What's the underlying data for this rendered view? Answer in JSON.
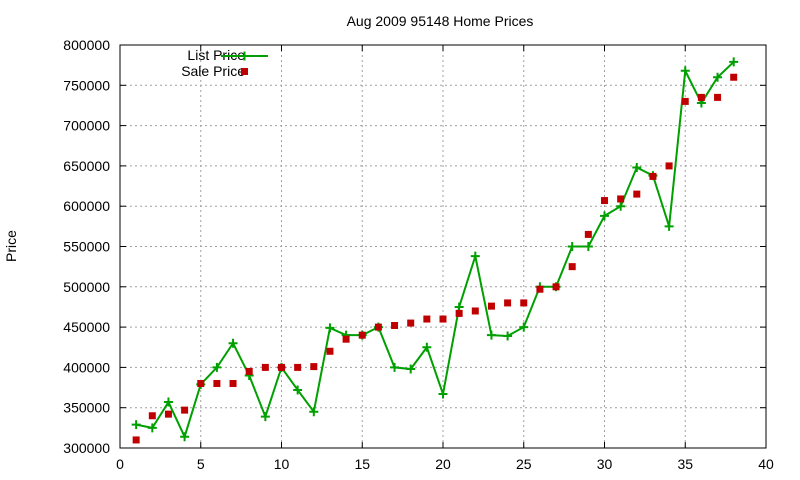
{
  "chart_data": {
    "type": "line",
    "title": "Aug 2009 95148 Home Prices",
    "xlabel": "",
    "ylabel": "Price",
    "xlim": [
      0,
      40
    ],
    "ylim": [
      300000,
      800000
    ],
    "x_ticks": [
      "0",
      "5",
      "10",
      "15",
      "20",
      "25",
      "30",
      "35",
      "40"
    ],
    "y_ticks": [
      "300000",
      "350000",
      "400000",
      "450000",
      "500000",
      "550000",
      "600000",
      "650000",
      "700000",
      "750000",
      "800000"
    ],
    "grid": true,
    "legend_position": "top-left",
    "series": [
      {
        "name": "List Price",
        "style": "lines+plus-points",
        "color": "#00a000",
        "x": [
          1,
          2,
          3,
          4,
          5,
          6,
          7,
          8,
          9,
          10,
          11,
          12,
          13,
          14,
          15,
          16,
          17,
          18,
          19,
          20,
          21,
          22,
          23,
          24,
          25,
          26,
          27,
          28,
          29,
          30,
          31,
          32,
          33,
          34,
          35,
          36,
          37,
          38
        ],
        "y": [
          329000,
          325000,
          357000,
          314000,
          379000,
          400000,
          430000,
          390000,
          339000,
          400000,
          372000,
          345000,
          449000,
          440000,
          440000,
          450000,
          400000,
          398000,
          425000,
          367000,
          475000,
          538000,
          440000,
          439000,
          450000,
          500000,
          500000,
          550000,
          550000,
          588000,
          600000,
          648000,
          638000,
          575000,
          768000,
          728000,
          760000,
          779000
        ]
      },
      {
        "name": "Sale Price",
        "style": "square-points",
        "color": "#c00000",
        "x": [
          1,
          2,
          3,
          4,
          5,
          6,
          7,
          8,
          9,
          10,
          11,
          12,
          13,
          14,
          15,
          16,
          17,
          18,
          19,
          20,
          21,
          22,
          23,
          24,
          25,
          26,
          27,
          28,
          29,
          30,
          31,
          32,
          33,
          34,
          35,
          36,
          37,
          38
        ],
        "y": [
          310000,
          340000,
          342000,
          347000,
          380000,
          380000,
          380000,
          395000,
          400000,
          400000,
          400000,
          401000,
          420000,
          435000,
          440000,
          450000,
          452000,
          455000,
          460000,
          460000,
          467000,
          470000,
          476000,
          480000,
          480000,
          497000,
          500000,
          525000,
          565000,
          607000,
          609000,
          615000,
          637000,
          650000,
          730000,
          735000,
          735000,
          760000
        ]
      }
    ]
  }
}
